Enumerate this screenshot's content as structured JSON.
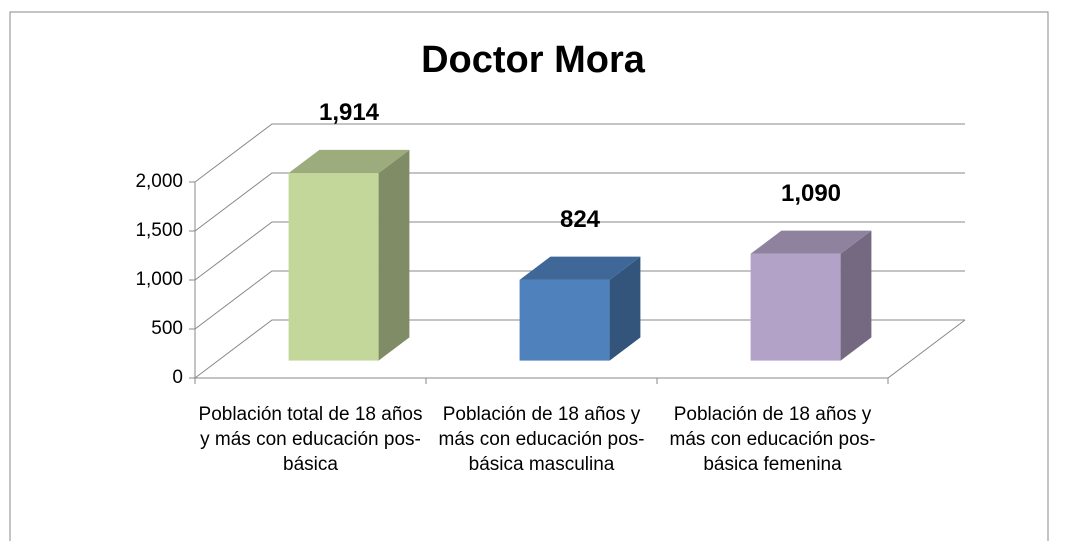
{
  "chart_data": {
    "type": "bar3d",
    "title": "Doctor Mora",
    "categories": [
      "Población total de 18 años y más con educación pos-básica",
      "Población de 18 años y más con educación pos-básica masculina",
      "Población  de 18 años y más con educación pos-básica femenina"
    ],
    "values": [
      1914,
      824,
      1090
    ],
    "value_labels": [
      "1,914",
      "824",
      "1,090"
    ],
    "colors": [
      "#c4d79b",
      "#4f81bd",
      "#b3a2c7"
    ],
    "ylim": [
      0,
      2000
    ],
    "yticks": [
      0,
      500,
      {
        "value": 1000,
        "label": "1,000"
      },
      {
        "value": 1500,
        "label": "1,500"
      },
      {
        "value": 2000,
        "label": "2,000"
      }
    ],
    "grid": true
  }
}
